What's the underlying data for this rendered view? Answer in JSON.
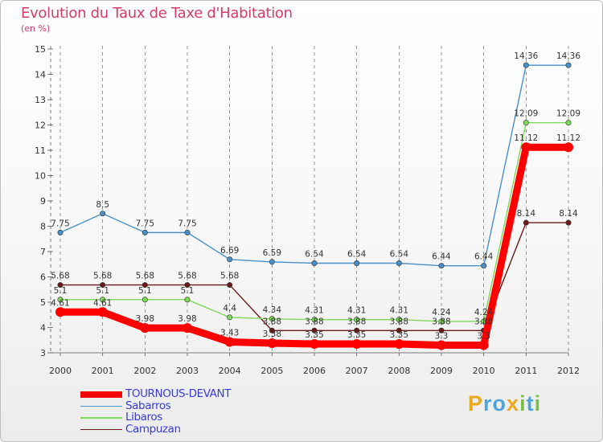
{
  "title": "Evolution du Taux de Taxe d'Habitation",
  "subtitle": "(en %)",
  "brand": [
    "P",
    "r",
    "o",
    "x",
    "i",
    "t",
    "i"
  ],
  "chart_data": {
    "type": "line",
    "x": [
      "2000",
      "2001",
      "2002",
      "2003",
      "2004",
      "2005",
      "2006",
      "2007",
      "2008",
      "2009",
      "2010",
      "2011",
      "2012"
    ],
    "ylim": [
      3,
      15
    ],
    "yticks": [
      "3",
      "4",
      "5",
      "6",
      "7",
      "8",
      "9",
      "10",
      "11",
      "12",
      "13",
      "14",
      "15"
    ],
    "grid": "vertical dashed",
    "legend": "bottom-left",
    "series": [
      {
        "name": "TOURNOUS-DEVANT",
        "color": "#ff0000",
        "values": [
          4.61,
          4.61,
          3.98,
          3.98,
          3.43,
          3.38,
          3.35,
          3.35,
          3.35,
          3.3,
          3.3,
          11.12,
          11.12
        ],
        "labels": [
          "4.61",
          "4.61",
          "3.98",
          "3.98",
          "3.43",
          "3.38",
          "3.35",
          "3.35",
          "3.35",
          "3.3",
          "3.3",
          "11.12",
          "11.12"
        ]
      },
      {
        "name": "Sabarros",
        "color": "#4a90c8",
        "values": [
          7.75,
          8.5,
          7.75,
          7.75,
          6.69,
          6.59,
          6.54,
          6.54,
          6.54,
          6.44,
          6.44,
          14.36,
          14.36
        ],
        "labels": [
          "7.75",
          "8.5",
          "7.75",
          "7.75",
          "6.69",
          "6.59",
          "6.54",
          "6.54",
          "6.54",
          "6.44",
          "6.44",
          "14.36",
          "14.36"
        ]
      },
      {
        "name": "Libaros",
        "color": "#7ed957",
        "values": [
          5.1,
          5.1,
          5.1,
          5.1,
          4.4,
          4.34,
          4.31,
          4.31,
          4.31,
          4.24,
          4.24,
          12.09,
          12.09
        ],
        "labels": [
          "5.1",
          "5.1",
          "5.1",
          "5.1",
          "4.4",
          "4.34",
          "4.31",
          "4.31",
          "4.31",
          "4.24",
          "4.24",
          "12.09",
          "12.09"
        ]
      },
      {
        "name": "Campuzan",
        "color": "#6b1a1a",
        "values": [
          5.68,
          5.68,
          5.68,
          5.68,
          5.68,
          3.88,
          3.88,
          3.88,
          3.88,
          3.88,
          3.88,
          8.14,
          8.14
        ],
        "labels": [
          "5.68",
          "5.68",
          "5.68",
          "5.68",
          "5.68",
          "3.88",
          "3.88",
          "3.88",
          "3.88",
          "3.88",
          "3.88",
          "8.14",
          "8.14"
        ]
      }
    ]
  }
}
